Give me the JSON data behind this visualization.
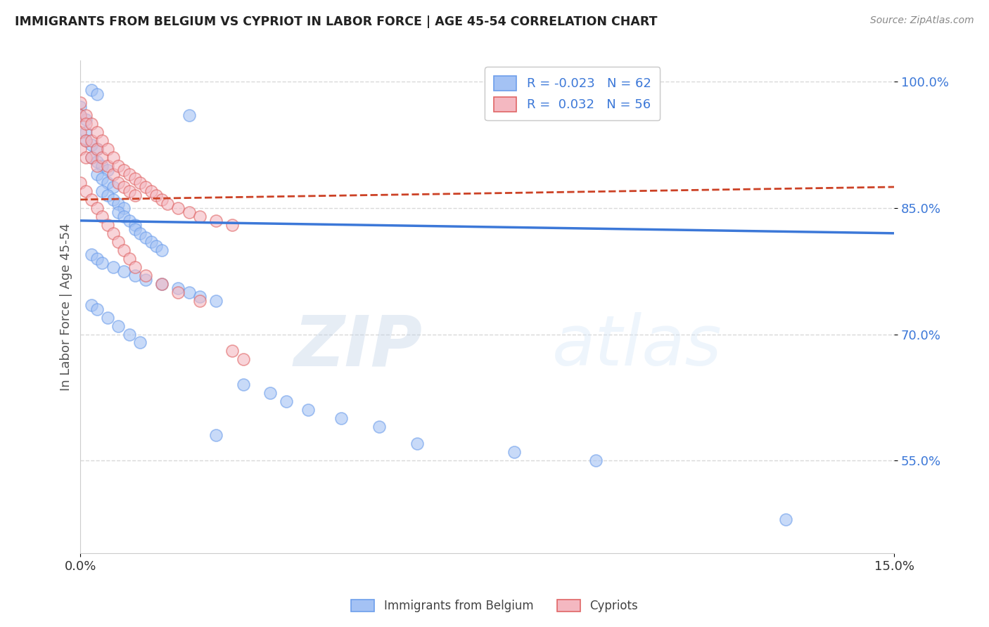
{
  "title": "IMMIGRANTS FROM BELGIUM VS CYPRIOT IN LABOR FORCE | AGE 45-54 CORRELATION CHART",
  "source": "Source: ZipAtlas.com",
  "ylabel": "In Labor Force | Age 45-54",
  "legend_label1": "Immigrants from Belgium",
  "legend_label2": "Cypriots",
  "watermark_zip": "ZIP",
  "watermark_atlas": "atlas",
  "blue_color": "#a4c2f4",
  "pink_color": "#f4b8c1",
  "blue_edge_color": "#6d9eeb",
  "pink_edge_color": "#e06666",
  "blue_line_color": "#3c78d8",
  "pink_line_color": "#cc4125",
  "R1": -0.023,
  "N1": 62,
  "R2": 0.032,
  "N2": 56,
  "xlim": [
    0.0,
    0.15
  ],
  "ylim": [
    0.44,
    1.025
  ],
  "yticks": [
    0.55,
    0.7,
    0.85,
    1.0
  ],
  "ytick_labels": [
    "55.0%",
    "70.0%",
    "85.0%",
    "100.0%"
  ],
  "blue_trend_y0": 0.835,
  "blue_trend_y1": 0.82,
  "pink_trend_y0": 0.86,
  "pink_trend_y1": 0.875,
  "blue_x": [
    0.002,
    0.003,
    0.0,
    0.0,
    0.001,
    0.001,
    0.001,
    0.002,
    0.003,
    0.002,
    0.003,
    0.004,
    0.005,
    0.003,
    0.004,
    0.005,
    0.006,
    0.004,
    0.005,
    0.006,
    0.007,
    0.008,
    0.007,
    0.008,
    0.009,
    0.01,
    0.01,
    0.011,
    0.012,
    0.013,
    0.014,
    0.015,
    0.002,
    0.003,
    0.004,
    0.006,
    0.008,
    0.01,
    0.012,
    0.015,
    0.018,
    0.02,
    0.022,
    0.025,
    0.002,
    0.003,
    0.005,
    0.007,
    0.009,
    0.011,
    0.03,
    0.035,
    0.038,
    0.042,
    0.048,
    0.055,
    0.062,
    0.08,
    0.095,
    0.13,
    0.025,
    0.02
  ],
  "blue_y": [
    0.99,
    0.985,
    0.97,
    0.96,
    0.955,
    0.94,
    0.93,
    0.925,
    0.92,
    0.91,
    0.905,
    0.9,
    0.895,
    0.89,
    0.885,
    0.88,
    0.875,
    0.87,
    0.865,
    0.86,
    0.855,
    0.85,
    0.845,
    0.84,
    0.835,
    0.83,
    0.825,
    0.82,
    0.815,
    0.81,
    0.805,
    0.8,
    0.795,
    0.79,
    0.785,
    0.78,
    0.775,
    0.77,
    0.765,
    0.76,
    0.755,
    0.75,
    0.745,
    0.74,
    0.735,
    0.73,
    0.72,
    0.71,
    0.7,
    0.69,
    0.64,
    0.63,
    0.62,
    0.61,
    0.6,
    0.59,
    0.57,
    0.56,
    0.55,
    0.48,
    0.58,
    0.96
  ],
  "pink_x": [
    0.0,
    0.0,
    0.0,
    0.0,
    0.001,
    0.001,
    0.001,
    0.001,
    0.002,
    0.002,
    0.002,
    0.003,
    0.003,
    0.003,
    0.004,
    0.004,
    0.005,
    0.005,
    0.006,
    0.006,
    0.007,
    0.007,
    0.008,
    0.008,
    0.009,
    0.009,
    0.01,
    0.01,
    0.011,
    0.012,
    0.013,
    0.014,
    0.015,
    0.016,
    0.018,
    0.02,
    0.022,
    0.025,
    0.028,
    0.03,
    0.0,
    0.001,
    0.002,
    0.003,
    0.004,
    0.005,
    0.006,
    0.007,
    0.008,
    0.009,
    0.01,
    0.012,
    0.015,
    0.018,
    0.022,
    0.028
  ],
  "pink_y": [
    0.975,
    0.96,
    0.94,
    0.92,
    0.96,
    0.95,
    0.93,
    0.91,
    0.95,
    0.93,
    0.91,
    0.94,
    0.92,
    0.9,
    0.93,
    0.91,
    0.92,
    0.9,
    0.91,
    0.89,
    0.9,
    0.88,
    0.895,
    0.875,
    0.89,
    0.87,
    0.885,
    0.865,
    0.88,
    0.875,
    0.87,
    0.865,
    0.86,
    0.855,
    0.85,
    0.845,
    0.84,
    0.835,
    0.83,
    0.67,
    0.88,
    0.87,
    0.86,
    0.85,
    0.84,
    0.83,
    0.82,
    0.81,
    0.8,
    0.79,
    0.78,
    0.77,
    0.76,
    0.75,
    0.74,
    0.68
  ]
}
